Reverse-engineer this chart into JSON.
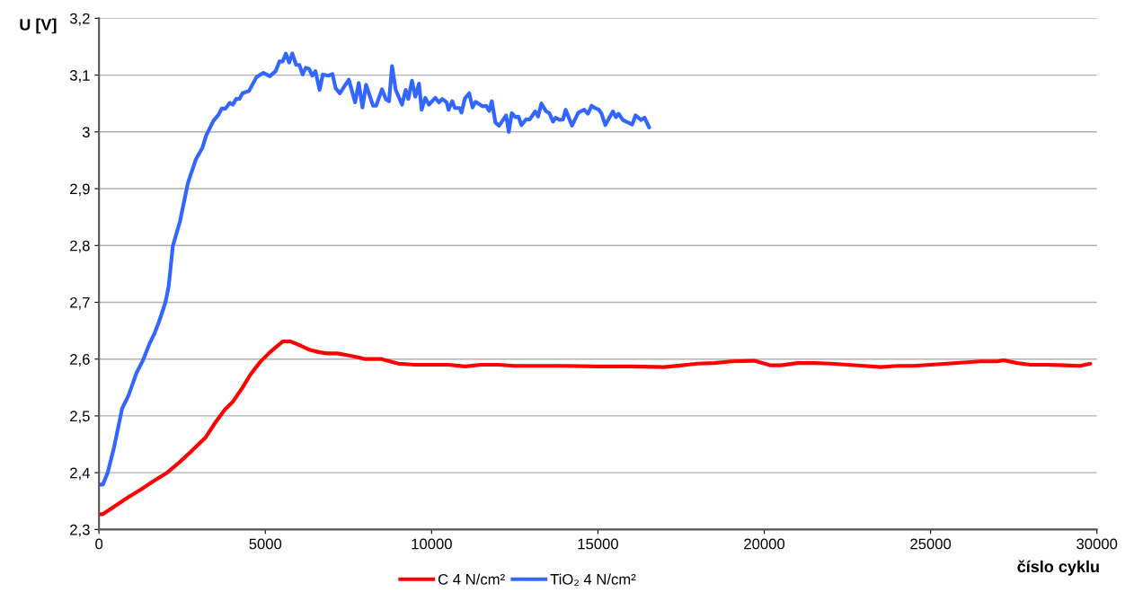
{
  "chart_data": {
    "type": "line",
    "ylabel": "U [V]",
    "xlabel": "číslo cyklu",
    "xlim": [
      0,
      30000
    ],
    "xticks": [
      0,
      5000,
      10000,
      15000,
      20000,
      25000,
      30000
    ],
    "ylim": [
      2.3,
      3.2
    ],
    "yticks": [
      {
        "value": 2.3,
        "label": "2,3"
      },
      {
        "value": 2.4,
        "label": "2,4"
      },
      {
        "value": 2.5,
        "label": "2,5"
      },
      {
        "value": 2.6,
        "label": "2,6"
      },
      {
        "value": 2.7,
        "label": "2,7"
      },
      {
        "value": 2.8,
        "label": "2,8"
      },
      {
        "value": 2.9,
        "label": "2,9"
      },
      {
        "value": 3.0,
        "label": "3"
      },
      {
        "value": 3.1,
        "label": "3,1"
      },
      {
        "value": 3.2,
        "label": "3,2"
      }
    ],
    "grid": "y",
    "legend": "bottom",
    "marker": "none",
    "line_style": "solid",
    "series": [
      {
        "name": "C 4 N/cm²",
        "color": "#ff0000",
        "x": [
          20,
          116,
          502,
          888,
          1275,
          1660,
          2046,
          2432,
          2818,
          3204,
          3494,
          3784,
          4025,
          4315,
          4556,
          4846,
          5136,
          5522,
          5763,
          6053,
          6343,
          6632,
          6874,
          7163,
          7452,
          7790,
          8000,
          8500,
          9000,
          9500,
          10000,
          10500,
          11000,
          11500,
          12000,
          12500,
          13000,
          14000,
          15000,
          16000,
          17000,
          18000,
          18500,
          19000,
          19700,
          20200,
          20500,
          21000,
          21500,
          22000,
          22500,
          23000,
          23500,
          24000,
          24500,
          25000,
          25500,
          26000,
          26500,
          27000,
          27200,
          27600,
          28000,
          28500,
          29000,
          29500,
          29800
        ],
        "values": [
          2.327,
          2.327,
          2.342,
          2.357,
          2.371,
          2.386,
          2.4,
          2.419,
          2.44,
          2.462,
          2.488,
          2.511,
          2.525,
          2.55,
          2.573,
          2.595,
          2.612,
          2.631,
          2.631,
          2.624,
          2.616,
          2.612,
          2.61,
          2.61,
          2.607,
          2.603,
          2.6,
          2.6,
          2.592,
          2.59,
          2.59,
          2.59,
          2.587,
          2.59,
          2.59,
          2.588,
          2.588,
          2.588,
          2.587,
          2.587,
          2.586,
          2.592,
          2.593,
          2.596,
          2.597,
          2.589,
          2.589,
          2.593,
          2.593,
          2.592,
          2.59,
          2.588,
          2.586,
          2.588,
          2.588,
          2.59,
          2.592,
          2.594,
          2.596,
          2.596,
          2.598,
          2.593,
          2.59,
          2.59,
          2.589,
          2.588,
          2.592
        ]
      },
      {
        "name": "TiO₂ 4 N/cm²",
        "color": "#3366ff",
        "x": [
          20,
          116,
          260,
          454,
          695,
          888,
          1130,
          1323,
          1516,
          1660,
          1805,
          1998,
          2094,
          2220,
          2432,
          2673,
          2915,
          3108,
          3224,
          3446,
          3591,
          3688,
          3804,
          3929,
          4025,
          4122,
          4219,
          4315,
          4508,
          4730,
          4943,
          5136,
          5310,
          5425,
          5522,
          5619,
          5715,
          5812,
          5927,
          6024,
          6121,
          6217,
          6314,
          6410,
          6507,
          6632,
          6729,
          6893,
          7018,
          7114,
          7240,
          7510,
          7700,
          7810,
          7920,
          8030,
          8240,
          8330,
          8510,
          8630,
          8720,
          8810,
          8920,
          9110,
          9220,
          9300,
          9410,
          9510,
          9620,
          9700,
          9810,
          9920,
          10110,
          10220,
          10320,
          10450,
          10510,
          10620,
          10700,
          10840,
          10900,
          11000,
          11130,
          11230,
          11320,
          11530,
          11640,
          11730,
          11810,
          11920,
          12030,
          12240,
          12320,
          12410,
          12520,
          12610,
          12700,
          12840,
          12950,
          13110,
          13200,
          13300,
          13430,
          13540,
          13650,
          13730,
          13860,
          13950,
          14030,
          14220,
          14410,
          14590,
          14700,
          14810,
          14910,
          15030,
          15110,
          15220,
          15450,
          15540,
          15620,
          15750,
          16030,
          16130,
          16300,
          16400,
          16540
        ],
        "values": [
          2.379,
          2.379,
          2.4,
          2.445,
          2.513,
          2.536,
          2.576,
          2.598,
          2.627,
          2.644,
          2.666,
          2.7,
          2.728,
          2.799,
          2.842,
          2.91,
          2.952,
          2.972,
          2.994,
          3.02,
          3.03,
          3.041,
          3.041,
          3.051,
          3.048,
          3.058,
          3.058,
          3.068,
          3.072,
          3.096,
          3.104,
          3.098,
          3.107,
          3.124,
          3.124,
          3.138,
          3.122,
          3.138,
          3.118,
          3.118,
          3.101,
          3.113,
          3.111,
          3.099,
          3.107,
          3.074,
          3.101,
          3.099,
          3.102,
          3.077,
          3.068,
          3.092,
          3.052,
          3.086,
          3.043,
          3.083,
          3.046,
          3.046,
          3.075,
          3.057,
          3.054,
          3.116,
          3.074,
          3.048,
          3.074,
          3.058,
          3.09,
          3.062,
          3.085,
          3.039,
          3.06,
          3.048,
          3.06,
          3.052,
          3.058,
          3.052,
          3.039,
          3.054,
          3.042,
          3.042,
          3.034,
          3.059,
          3.068,
          3.043,
          3.053,
          3.045,
          3.046,
          3.037,
          3.054,
          3.016,
          3.011,
          3.029,
          3.0,
          3.033,
          3.026,
          3.027,
          3.012,
          3.022,
          3.022,
          3.036,
          3.027,
          3.05,
          3.037,
          3.033,
          3.018,
          3.025,
          3.021,
          3.022,
          3.039,
          3.011,
          3.034,
          3.039,
          3.032,
          3.046,
          3.042,
          3.039,
          3.032,
          3.012,
          3.036,
          3.026,
          3.032,
          3.021,
          3.013,
          3.029,
          3.021,
          3.025,
          3.008
        ]
      }
    ]
  }
}
